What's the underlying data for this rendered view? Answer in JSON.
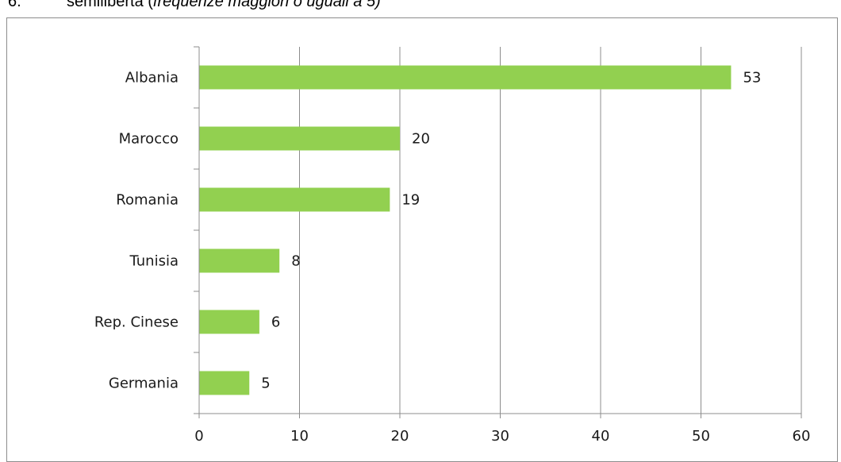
{
  "header": {
    "number": "6.",
    "text": "semilibertà (",
    "italic": "frequenze maggiori o uguali a 5)"
  },
  "chart_data": {
    "type": "bar",
    "orientation": "horizontal",
    "categories": [
      "Albania",
      "Marocco",
      "Romania",
      "Tunisia",
      "Rep. Cinese",
      "Germania"
    ],
    "values": [
      53,
      20,
      19,
      8,
      6,
      5
    ],
    "xlim": [
      0,
      60
    ],
    "xticks": [
      0,
      10,
      20,
      30,
      40,
      50,
      60
    ],
    "grid": true,
    "bar_color": "#92d050",
    "title": "",
    "xlabel": "",
    "ylabel": ""
  }
}
